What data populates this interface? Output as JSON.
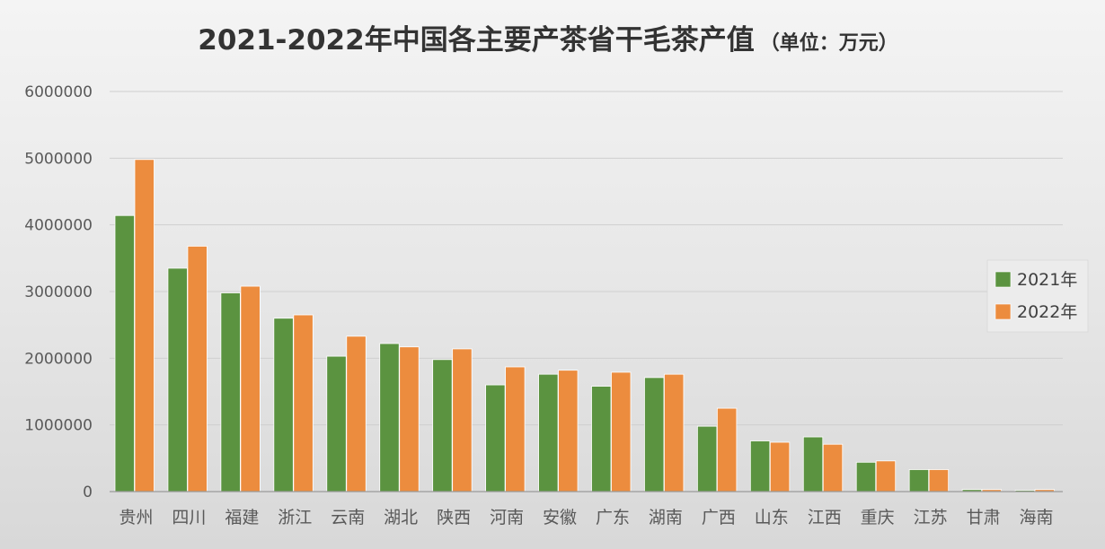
{
  "chart_data": {
    "type": "bar",
    "title": "2021-2022年中国各主要产茶省干毛茶产值",
    "title_unit": "（单位：万元）",
    "categories": [
      "贵州",
      "四川",
      "福建",
      "浙江",
      "云南",
      "湖北",
      "陕西",
      "河南",
      "安徽",
      "广东",
      "湖南",
      "广西",
      "山东",
      "江西",
      "重庆",
      "江苏",
      "甘肃",
      "海南"
    ],
    "series": [
      {
        "name": "2021年",
        "color": "#5b9340",
        "values": [
          4140000,
          3350000,
          2980000,
          2600000,
          2030000,
          2220000,
          1980000,
          1600000,
          1760000,
          1580000,
          1710000,
          980000,
          760000,
          820000,
          440000,
          330000,
          30000,
          20000
        ]
      },
      {
        "name": "2022年",
        "color": "#ec8c3e",
        "values": [
          4980000,
          3680000,
          3080000,
          2650000,
          2330000,
          2170000,
          2140000,
          1870000,
          1820000,
          1790000,
          1760000,
          1250000,
          740000,
          710000,
          460000,
          330000,
          30000,
          30000
        ]
      }
    ],
    "ylim": [
      0,
      6000000
    ],
    "yticks": [
      0,
      1000000,
      2000000,
      3000000,
      4000000,
      5000000,
      6000000
    ],
    "ytick_labels": [
      "0",
      "1000000",
      "2000000",
      "3000000",
      "4000000",
      "5000000",
      "6000000"
    ],
    "grid": true,
    "legend_position": "right",
    "xlabel": "",
    "ylabel": ""
  }
}
